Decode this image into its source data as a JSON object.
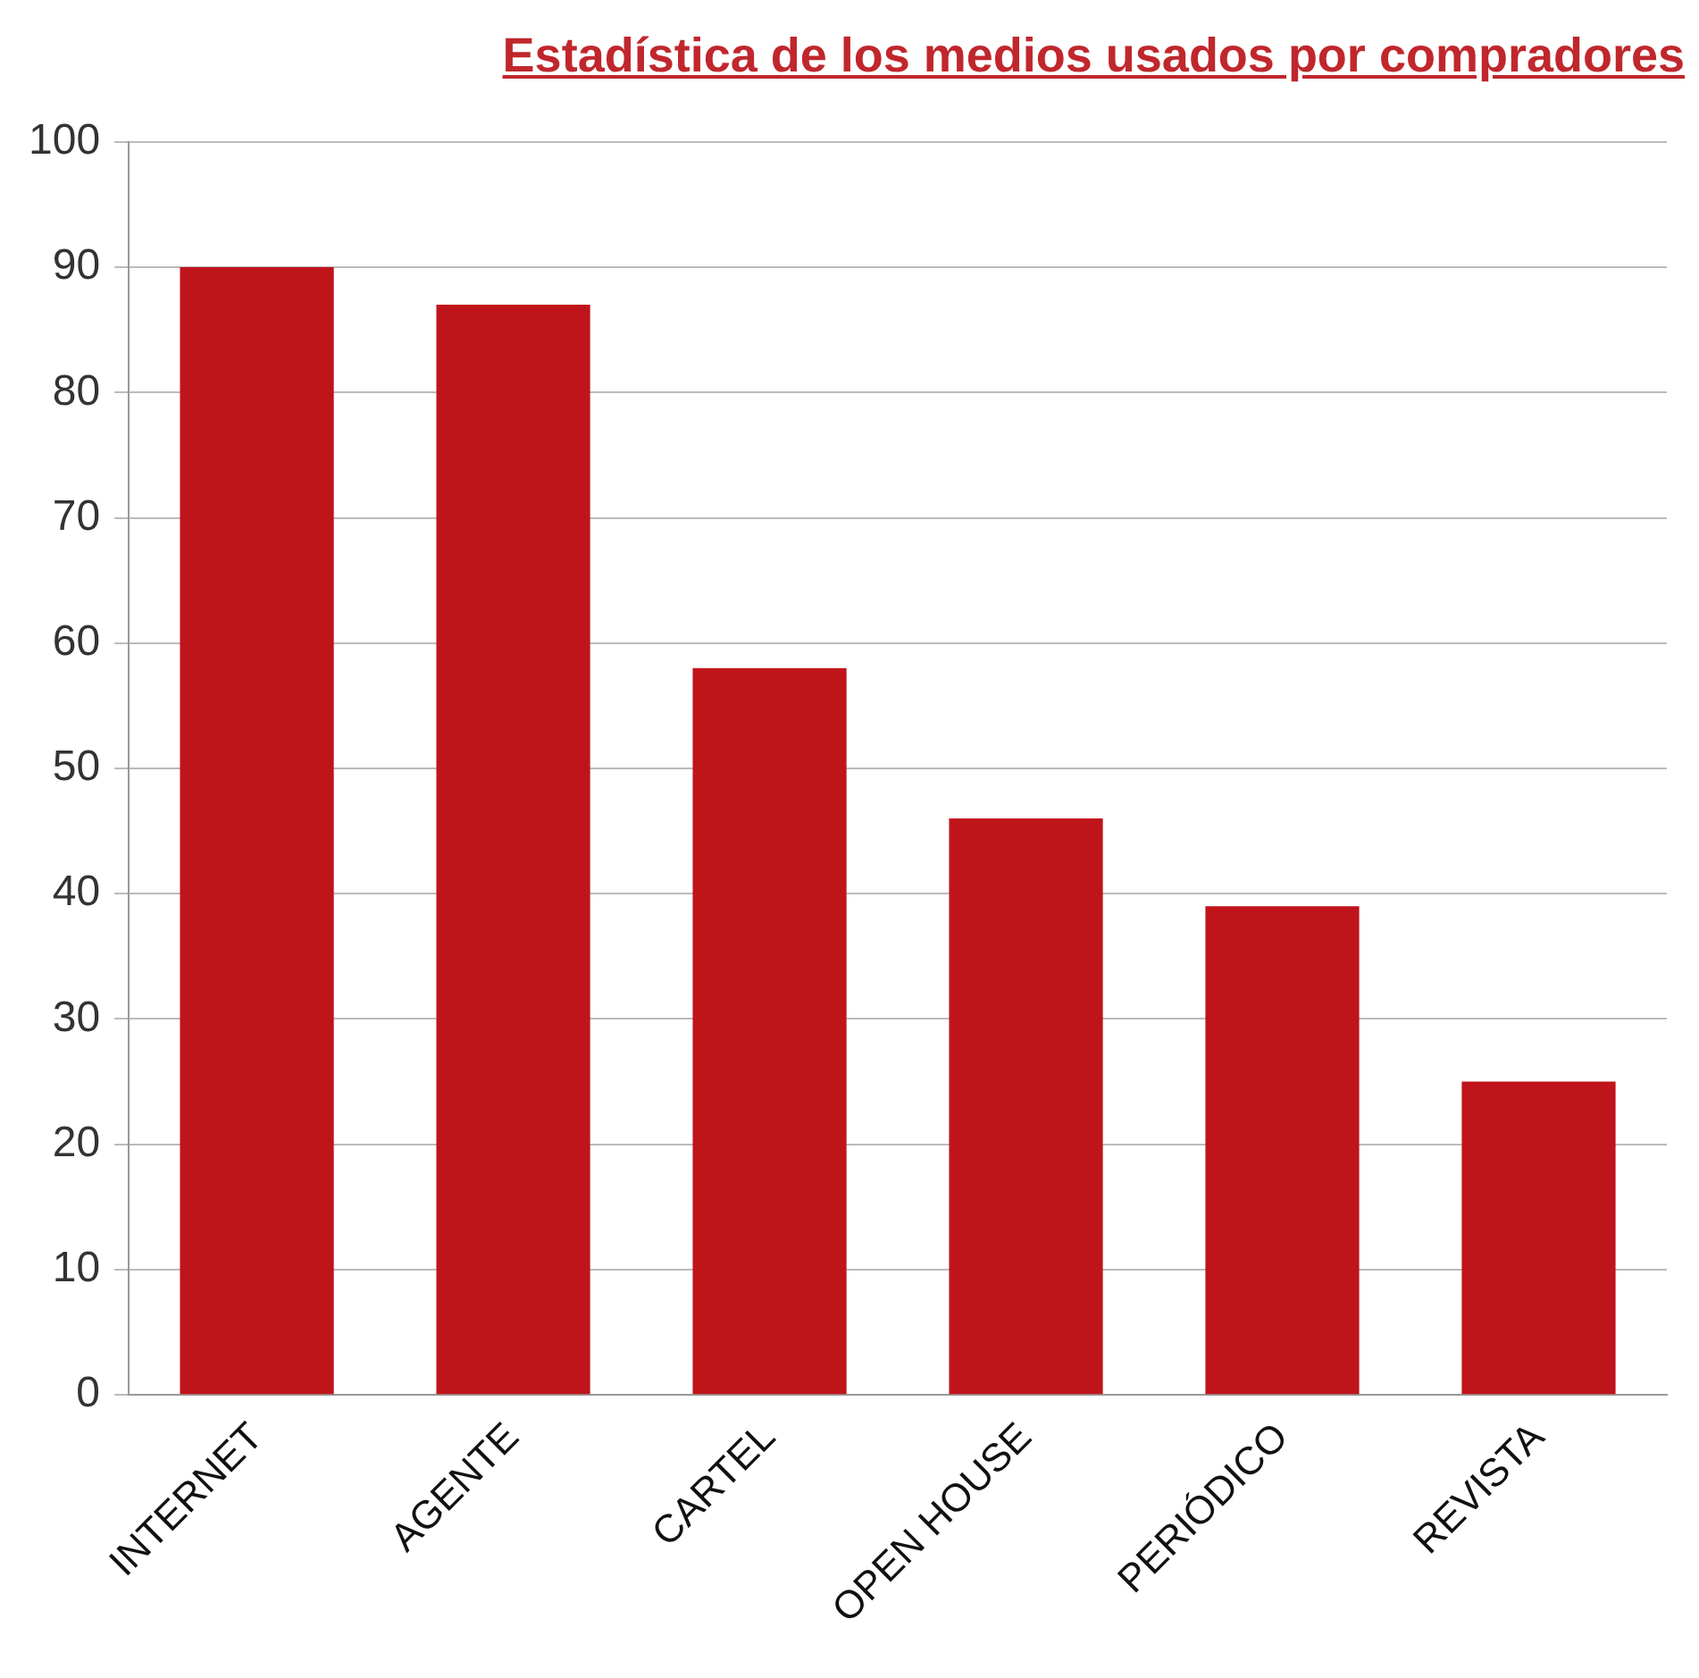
{
  "chart_data": {
    "type": "bar",
    "title": "Estadística de los medios usados por compradores",
    "categories": [
      "INTERNET",
      "AGENTE",
      "CARTEL",
      "OPEN HOUSE",
      "PERIÓDICO",
      "REVISTA"
    ],
    "values": [
      90,
      87,
      58,
      46,
      39,
      25
    ],
    "color": "#c0141b",
    "ylim": [
      0,
      100
    ],
    "yticks": [
      0,
      10,
      20,
      30,
      40,
      50,
      60,
      70,
      80,
      90,
      100
    ],
    "grid": "y"
  }
}
